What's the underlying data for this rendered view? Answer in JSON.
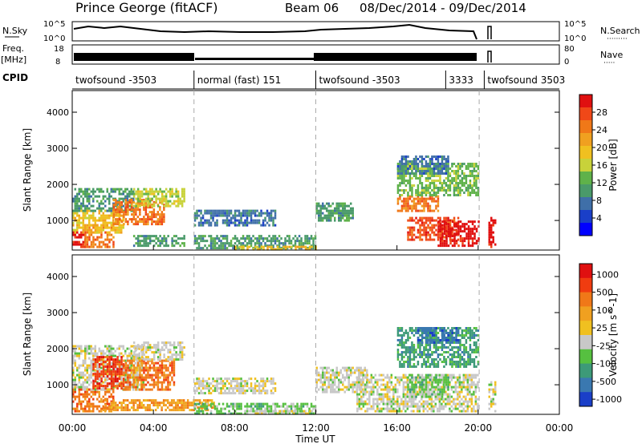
{
  "header": {
    "station": "Prince George (fitACF)",
    "beam": "Beam 06",
    "date_range": "08/Dec/2014 - 09/Dec/2014"
  },
  "panels": {
    "noise": {
      "left_label": "N.Sky",
      "right_label": "N.Search",
      "right_dots": "·········",
      "ticks_left": [
        "10^5",
        "10^0"
      ],
      "ticks_right": [
        "10^5",
        "10^0"
      ]
    },
    "freq": {
      "left_label_line1": "Freq.",
      "left_label_line2": "[MHz]",
      "right_label": "Nave",
      "right_dots": "·····",
      "ticks_left": [
        "18",
        "8"
      ],
      "ticks_right": [
        "80",
        "0"
      ]
    },
    "cpid": {
      "label": "CPID",
      "segments": [
        {
          "start_h": 0,
          "text": "twofsound -3503"
        },
        {
          "start_h": 6,
          "text": "normal (fast) 151"
        },
        {
          "start_h": 12,
          "text": "twofsound -3503"
        },
        {
          "start_h": 18.4,
          "text": "3333"
        },
        {
          "start_h": 20.3,
          "text": "twofsound 3503"
        }
      ]
    }
  },
  "axes": {
    "y_label": "Slant Range [km]",
    "x_label": "Time UT",
    "x_ticks": [
      "00:00",
      "04:00",
      "08:00",
      "12:00",
      "16:00",
      "20:00",
      "00:00"
    ],
    "y_ticks": [
      "1000",
      "2000",
      "3000",
      "4000"
    ],
    "x_range_hours": [
      0,
      24
    ],
    "y_range_km": [
      180,
      4600
    ]
  },
  "colorbars": {
    "power": {
      "title": "Power [dB]",
      "ticks": [
        "4",
        "8",
        "12",
        "16",
        "20",
        "24",
        "28"
      ],
      "colors": [
        "#0000ff",
        "#1a3fc8",
        "#3f6fa8",
        "#4a9a6a",
        "#5fb24a",
        "#c8d23a",
        "#f0c020",
        "#f0a020",
        "#f07818",
        "#f04818",
        "#e01010"
      ]
    },
    "velocity": {
      "title": "Velocity [m s^-1]",
      "ticks": [
        "1000",
        "500",
        "100",
        "25",
        "-25",
        "-100",
        "-500",
        "-1000"
      ],
      "colors": [
        "#1a3fc8",
        "#3a78b0",
        "#3d9a78",
        "#56c040",
        "#c8c8c8",
        "#f0c020",
        "#f0a020",
        "#f07818",
        "#f03c10",
        "#e01010"
      ]
    }
  },
  "chart_data": [
    {
      "type": "heatmap",
      "name_ref": "power",
      "x_unit": "hour UT",
      "y_unit": "km",
      "patches": [
        {
          "x": [
            0.0,
            0.6
          ],
          "y": [
            250,
            700
          ],
          "level": 10
        },
        {
          "x": [
            0.6,
            2.0
          ],
          "y": [
            300,
            900
          ],
          "level": 8
        },
        {
          "x": [
            0.0,
            2.5
          ],
          "y": [
            700,
            1300
          ],
          "level": 6
        },
        {
          "x": [
            0.0,
            3.0
          ],
          "y": [
            1300,
            1900
          ],
          "level": 3
        },
        {
          "x": [
            2.0,
            4.5
          ],
          "y": [
            900,
            1600
          ],
          "level": 8
        },
        {
          "x": [
            3.0,
            5.5
          ],
          "y": [
            1400,
            1900
          ],
          "level": 5
        },
        {
          "x": [
            3.0,
            5.5
          ],
          "y": [
            300,
            600
          ],
          "level": 3
        },
        {
          "x": [
            6.0,
            10.0
          ],
          "y": [
            900,
            1300
          ],
          "level": 2
        },
        {
          "x": [
            6.0,
            12.0
          ],
          "y": [
            250,
            600
          ],
          "level": 3
        },
        {
          "x": [
            8.0,
            12.0
          ],
          "y": [
            200,
            300
          ],
          "level": 6
        },
        {
          "x": [
            12.0,
            13.8
          ],
          "y": [
            1000,
            1500
          ],
          "level": 3
        },
        {
          "x": [
            16.0,
            18.0
          ],
          "y": [
            1300,
            1700
          ],
          "level": 8
        },
        {
          "x": [
            16.5,
            19.0
          ],
          "y": [
            500,
            1100
          ],
          "level": 9
        },
        {
          "x": [
            18.0,
            20.0
          ],
          "y": [
            300,
            1000
          ],
          "level": 10
        },
        {
          "x": [
            16.0,
            20.0
          ],
          "y": [
            1700,
            2600
          ],
          "level": 4
        },
        {
          "x": [
            16.0,
            18.5
          ],
          "y": [
            2300,
            2800
          ],
          "level": 2
        },
        {
          "x": [
            20.5,
            20.8
          ],
          "y": [
            250,
            1100
          ],
          "level": 10
        }
      ]
    },
    {
      "type": "heatmap",
      "name_ref": "velocity",
      "x_unit": "hour UT",
      "y_unit": "km",
      "patches": [
        {
          "x": [
            0.0,
            2.0
          ],
          "y": [
            250,
            900
          ],
          "level": 7
        },
        {
          "x": [
            0.0,
            3.5
          ],
          "y": [
            900,
            2100
          ],
          "level": 4
        },
        {
          "x": [
            1.0,
            2.5
          ],
          "y": [
            900,
            1800
          ],
          "level": 8
        },
        {
          "x": [
            2.5,
            5.0
          ],
          "y": [
            900,
            1700
          ],
          "level": 7
        },
        {
          "x": [
            3.0,
            5.5
          ],
          "y": [
            1700,
            2200
          ],
          "level": 4
        },
        {
          "x": [
            1.5,
            7.0
          ],
          "y": [
            300,
            600
          ],
          "level": 6
        },
        {
          "x": [
            6.0,
            10.0
          ],
          "y": [
            800,
            1200
          ],
          "level": 4
        },
        {
          "x": [
            6.0,
            12.0
          ],
          "y": [
            200,
            500
          ],
          "level": 3
        },
        {
          "x": [
            9.0,
            12.0
          ],
          "y": [
            200,
            300
          ],
          "level": 4
        },
        {
          "x": [
            12.0,
            14.5
          ],
          "y": [
            800,
            1500
          ],
          "level": 4
        },
        {
          "x": [
            14.0,
            20.0
          ],
          "y": [
            300,
            1300
          ],
          "level": 4
        },
        {
          "x": [
            16.5,
            18.5
          ],
          "y": [
            700,
            1300
          ],
          "level": 3
        },
        {
          "x": [
            16.0,
            20.0
          ],
          "y": [
            1500,
            2600
          ],
          "level": 2
        },
        {
          "x": [
            17.0,
            19.0
          ],
          "y": [
            2200,
            2600
          ],
          "level": 1
        },
        {
          "x": [
            20.5,
            20.8
          ],
          "y": [
            250,
            1100
          ],
          "level": 4
        }
      ]
    }
  ]
}
